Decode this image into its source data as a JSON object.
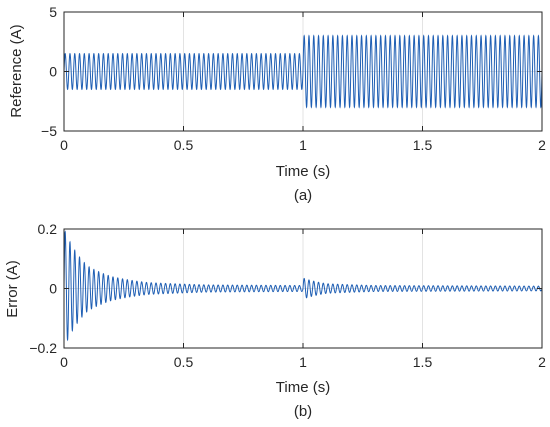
{
  "chart_data": [
    {
      "type": "line",
      "caption": "(a)",
      "xlabel": "Time (s)",
      "ylabel": "Reference (A)",
      "xlim": [
        0,
        2
      ],
      "ylim": [
        -5,
        5
      ],
      "xticks": [
        0,
        0.5,
        1,
        1.5,
        2
      ],
      "xtick_labels": [
        "0",
        "0.5",
        "1",
        "1.5",
        "2"
      ],
      "yticks": [
        -5,
        0,
        5
      ],
      "ytick_labels": [
        "−5",
        "0",
        "5"
      ],
      "grid": true,
      "series": [
        {
          "color": "#1f5fb4",
          "kind": "sinusoid",
          "frequency_hz": 50,
          "segments": [
            {
              "t_start": 0,
              "t_end": 1,
              "amplitude": 1.5
            },
            {
              "t_start": 1,
              "t_end": 2,
              "amplitude": 3.0
            }
          ]
        }
      ]
    },
    {
      "type": "line",
      "caption": "(b)",
      "xlabel": "Time (s)",
      "ylabel": "Error (A)",
      "xlim": [
        0,
        2
      ],
      "ylim": [
        -0.2,
        0.2
      ],
      "xticks": [
        0,
        0.5,
        1,
        1.5,
        2
      ],
      "xtick_labels": [
        "0",
        "0.5",
        "1",
        "1.5",
        "2"
      ],
      "yticks": [
        -0.2,
        0,
        0.2
      ],
      "ytick_labels": [
        "−0.2",
        "0",
        "0.2"
      ],
      "grid": true,
      "series": [
        {
          "color": "#1f5fb4",
          "kind": "decaying_oscillation",
          "frequency_hz": 50,
          "envelope": [
            {
              "t": 0.0,
              "amp": 0.2
            },
            {
              "t": 0.1,
              "amp": 0.075
            },
            {
              "t": 0.2,
              "amp": 0.04
            },
            {
              "t": 0.35,
              "amp": 0.02
            },
            {
              "t": 0.6,
              "amp": 0.012
            },
            {
              "t": 0.999,
              "amp": 0.01
            },
            {
              "t": 1.0,
              "amp": 0.035
            },
            {
              "t": 1.1,
              "amp": 0.016
            },
            {
              "t": 1.3,
              "amp": 0.01
            },
            {
              "t": 2.0,
              "amp": 0.008
            }
          ]
        }
      ]
    }
  ]
}
